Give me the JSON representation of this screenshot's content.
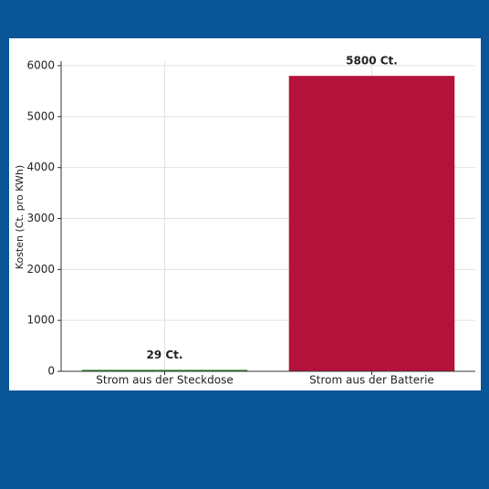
{
  "chart_data": {
    "type": "bar",
    "y_label": "Kosten (Ct. pro KWh)",
    "categories": [
      "Strom aus der Steckdose",
      "Strom aus der Batterie"
    ],
    "values": [
      29,
      5800
    ],
    "value_labels": [
      "29 Ct.",
      "5800 Ct."
    ],
    "colors": [
      "#2e8b2e",
      "#b3133b"
    ],
    "ylim": [
      0,
      6090
    ],
    "yticks": [
      0,
      1000,
      2000,
      3000,
      4000,
      5000,
      6000
    ],
    "grid": true
  }
}
